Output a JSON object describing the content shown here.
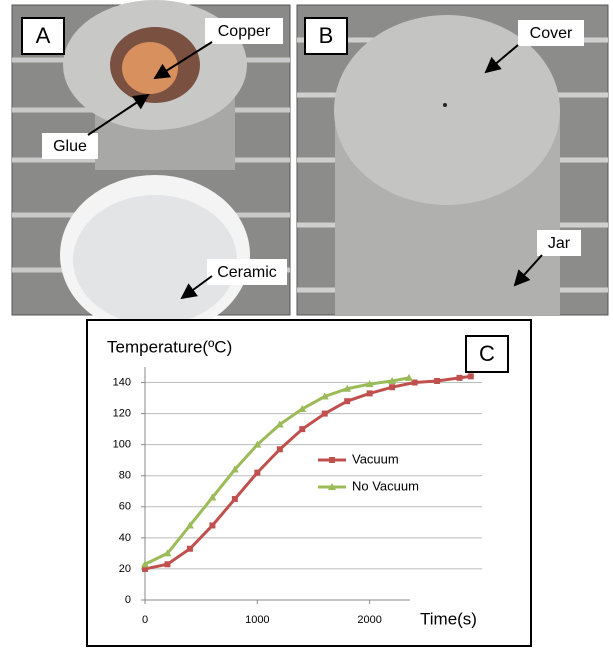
{
  "panels": [
    {
      "letter": "A",
      "labels": [
        "Copper",
        "Glue",
        "Ceramic"
      ]
    },
    {
      "letter": "B",
      "labels": [
        "Cover",
        "Jar"
      ]
    }
  ],
  "chart_data": {
    "type": "line",
    "letter": "C",
    "y_label": "Temperature(ºC)",
    "x_label": "Time(s)",
    "xlim": [
      0,
      3000
    ],
    "xticks": [
      0,
      1000,
      2000
    ],
    "ylim": [
      0,
      150
    ],
    "yticks": [
      0,
      20,
      40,
      60,
      80,
      100,
      120,
      140
    ],
    "grid": true,
    "series": [
      {
        "name": "Vacuum",
        "color": "#c0504d",
        "marker": "square",
        "x": [
          0,
          200,
          400,
          600,
          800,
          1000,
          1200,
          1400,
          1600,
          1800,
          2000,
          2200,
          2400,
          2600,
          2800,
          2900
        ],
        "values": [
          20,
          23,
          33,
          48,
          65,
          82,
          97,
          110,
          120,
          128,
          133,
          137,
          140,
          141,
          143,
          144
        ]
      },
      {
        "name": "No Vacuum",
        "color": "#9bbb59",
        "marker": "triangle",
        "x": [
          0,
          200,
          400,
          600,
          800,
          1000,
          1200,
          1400,
          1600,
          1800,
          2000,
          2200,
          2350
        ],
        "values": [
          23,
          30,
          48,
          66,
          84,
          100,
          113,
          123,
          131,
          136,
          139,
          141,
          143
        ]
      }
    ]
  }
}
